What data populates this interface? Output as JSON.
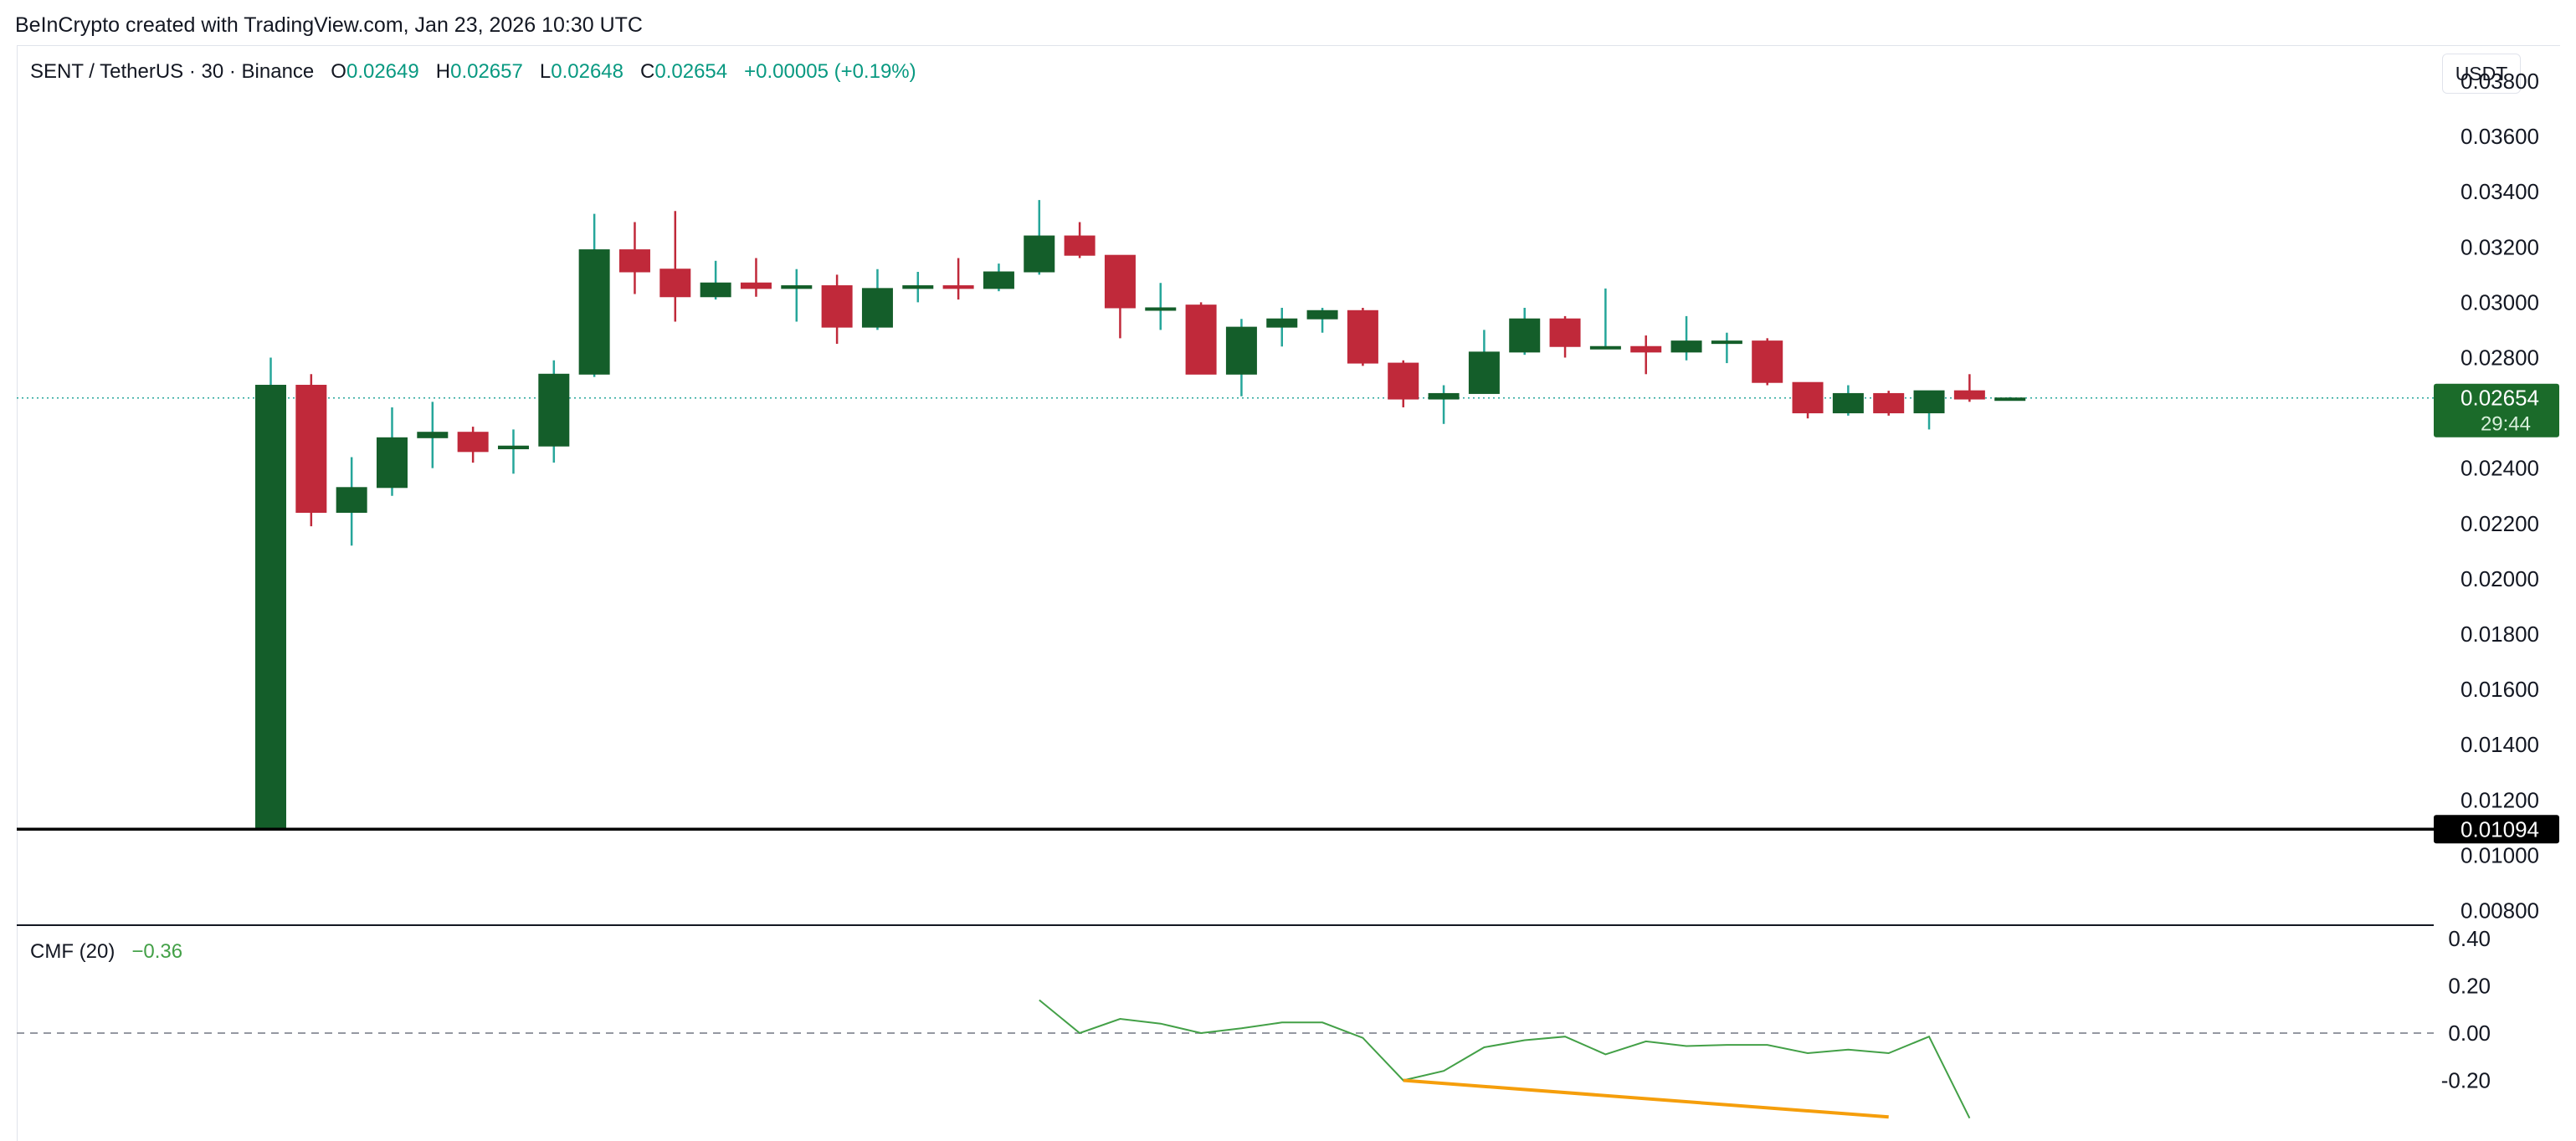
{
  "watermark": "BeInCrypto created with TradingView.com, Jan 23, 2026 10:30 UTC",
  "header": {
    "symbol": "SENT / TetherUS · 30 · Binance",
    "o_label": "O",
    "o_value": "0.02649",
    "h_label": "H",
    "h_value": "0.02657",
    "l_label": "L",
    "l_value": "0.02648",
    "c_label": "C",
    "c_value": "0.02654",
    "change": "+0.00005 (+0.19%)",
    "currency": "USDT"
  },
  "colors": {
    "up": "#145e2a",
    "down": "#c0293a",
    "wick_up": "#26a69a",
    "wick_down": "#c0293a",
    "cmf_line": "#43a047",
    "trendline": "#f59e0b",
    "level_line": "#000000",
    "price_badge": "#1b6b2a"
  },
  "chart_data": [
    {
      "type": "candlestick",
      "title": "SENT / TetherUS · 30 · Binance",
      "ylim": [
        0.0075,
        0.0393
      ],
      "y_ticks": [
        "0.03800",
        "0.03600",
        "0.03400",
        "0.03200",
        "0.03000",
        "0.02800",
        "0.02400",
        "0.02200",
        "0.02000",
        "0.01800",
        "0.01600",
        "0.01400",
        "0.01200",
        "0.01000",
        "0.00800"
      ],
      "x_slots": 54,
      "candles": [
        {
          "i": 0,
          "o": 0.01094,
          "h": 0.028,
          "l": 0.01094,
          "c": 0.027
        },
        {
          "i": 1,
          "o": 0.027,
          "h": 0.0274,
          "l": 0.0219,
          "c": 0.0224
        },
        {
          "i": 2,
          "o": 0.0224,
          "h": 0.0244,
          "l": 0.0212,
          "c": 0.0233
        },
        {
          "i": 3,
          "o": 0.0233,
          "h": 0.0262,
          "l": 0.023,
          "c": 0.0251
        },
        {
          "i": 4,
          "o": 0.0251,
          "h": 0.0264,
          "l": 0.024,
          "c": 0.0253
        },
        {
          "i": 5,
          "o": 0.0253,
          "h": 0.0255,
          "l": 0.0242,
          "c": 0.0246
        },
        {
          "i": 6,
          "o": 0.0247,
          "h": 0.0254,
          "l": 0.0238,
          "c": 0.0248
        },
        {
          "i": 7,
          "o": 0.0248,
          "h": 0.0279,
          "l": 0.0242,
          "c": 0.0274
        },
        {
          "i": 8,
          "o": 0.0274,
          "h": 0.0332,
          "l": 0.0273,
          "c": 0.0319
        },
        {
          "i": 9,
          "o": 0.0319,
          "h": 0.0329,
          "l": 0.0303,
          "c": 0.0311
        },
        {
          "i": 10,
          "o": 0.0312,
          "h": 0.0333,
          "l": 0.0293,
          "c": 0.0302
        },
        {
          "i": 11,
          "o": 0.0302,
          "h": 0.0315,
          "l": 0.0301,
          "c": 0.0307
        },
        {
          "i": 12,
          "o": 0.0307,
          "h": 0.0316,
          "l": 0.0302,
          "c": 0.0305
        },
        {
          "i": 13,
          "o": 0.0305,
          "h": 0.0312,
          "l": 0.0293,
          "c": 0.0306
        },
        {
          "i": 14,
          "o": 0.0306,
          "h": 0.031,
          "l": 0.0285,
          "c": 0.0291
        },
        {
          "i": 15,
          "o": 0.0291,
          "h": 0.0312,
          "l": 0.029,
          "c": 0.0305
        },
        {
          "i": 16,
          "o": 0.0305,
          "h": 0.0311,
          "l": 0.03,
          "c": 0.0306
        },
        {
          "i": 17,
          "o": 0.0306,
          "h": 0.0316,
          "l": 0.0301,
          "c": 0.0305
        },
        {
          "i": 18,
          "o": 0.0305,
          "h": 0.0314,
          "l": 0.0304,
          "c": 0.0311
        },
        {
          "i": 19,
          "o": 0.0311,
          "h": 0.0337,
          "l": 0.031,
          "c": 0.0324
        },
        {
          "i": 20,
          "o": 0.0324,
          "h": 0.0329,
          "l": 0.0316,
          "c": 0.0317
        },
        {
          "i": 21,
          "o": 0.0317,
          "h": 0.0317,
          "l": 0.0287,
          "c": 0.0298
        },
        {
          "i": 22,
          "o": 0.0298,
          "h": 0.0307,
          "l": 0.029,
          "c": 0.0298
        },
        {
          "i": 23,
          "o": 0.0299,
          "h": 0.03,
          "l": 0.0274,
          "c": 0.0274
        },
        {
          "i": 24,
          "o": 0.0274,
          "h": 0.0294,
          "l": 0.0266,
          "c": 0.0291
        },
        {
          "i": 25,
          "o": 0.0291,
          "h": 0.0298,
          "l": 0.0284,
          "c": 0.0294
        },
        {
          "i": 26,
          "o": 0.0294,
          "h": 0.0298,
          "l": 0.0289,
          "c": 0.0297
        },
        {
          "i": 27,
          "o": 0.0297,
          "h": 0.0298,
          "l": 0.0277,
          "c": 0.0278
        },
        {
          "i": 28,
          "o": 0.0278,
          "h": 0.0279,
          "l": 0.0262,
          "c": 0.0265
        },
        {
          "i": 29,
          "o": 0.0265,
          "h": 0.027,
          "l": 0.0256,
          "c": 0.0267
        },
        {
          "i": 30,
          "o": 0.0267,
          "h": 0.029,
          "l": 0.0267,
          "c": 0.0282
        },
        {
          "i": 31,
          "o": 0.0282,
          "h": 0.0298,
          "l": 0.0281,
          "c": 0.0294
        },
        {
          "i": 32,
          "o": 0.0294,
          "h": 0.0295,
          "l": 0.028,
          "c": 0.0284
        },
        {
          "i": 33,
          "o": 0.0284,
          "h": 0.0305,
          "l": 0.0283,
          "c": 0.0284
        },
        {
          "i": 34,
          "o": 0.0284,
          "h": 0.0288,
          "l": 0.0274,
          "c": 0.0282
        },
        {
          "i": 35,
          "o": 0.0282,
          "h": 0.0295,
          "l": 0.0279,
          "c": 0.0286
        },
        {
          "i": 36,
          "o": 0.0286,
          "h": 0.0289,
          "l": 0.0278,
          "c": 0.0286
        },
        {
          "i": 37,
          "o": 0.0286,
          "h": 0.0287,
          "l": 0.027,
          "c": 0.0271
        },
        {
          "i": 38,
          "o": 0.0271,
          "h": 0.0271,
          "l": 0.0258,
          "c": 0.026
        },
        {
          "i": 39,
          "o": 0.026,
          "h": 0.027,
          "l": 0.0259,
          "c": 0.0267
        },
        {
          "i": 40,
          "o": 0.0267,
          "h": 0.0268,
          "l": 0.0259,
          "c": 0.026
        },
        {
          "i": 41,
          "o": 0.026,
          "h": 0.0268,
          "l": 0.0254,
          "c": 0.0268
        },
        {
          "i": 42,
          "o": 0.0268,
          "h": 0.0274,
          "l": 0.0264,
          "c": 0.0265
        },
        {
          "i": 43,
          "o": 0.02649,
          "h": 0.02657,
          "l": 0.02648,
          "c": 0.02654
        }
      ],
      "last_price_label": "0.02654",
      "countdown_label": "29:44",
      "last_price": 0.02654,
      "level_price": 0.01094,
      "level_label": "0.01094"
    },
    {
      "type": "line",
      "title": "CMF (20)",
      "current_value": "−0.36",
      "ylim": [
        -0.36,
        0.44
      ],
      "y_ticks": [
        "0.40",
        "0.20",
        "0.00",
        "-0.20"
      ],
      "zero_line": 0.0,
      "series": [
        {
          "name": "CMF (20)",
          "points": [
            [
              19,
              0.14
            ],
            [
              20,
              0.0
            ],
            [
              21,
              0.06
            ],
            [
              22,
              0.04
            ],
            [
              23,
              0.0
            ],
            [
              24,
              0.02
            ],
            [
              25,
              0.045
            ],
            [
              26,
              0.045
            ],
            [
              27,
              -0.02
            ],
            [
              28,
              -0.2
            ],
            [
              29,
              -0.16
            ],
            [
              30,
              -0.06
            ],
            [
              31,
              -0.03
            ],
            [
              32,
              -0.015
            ],
            [
              33,
              -0.09
            ],
            [
              34,
              -0.035
            ],
            [
              35,
              -0.055
            ],
            [
              36,
              -0.05
            ],
            [
              37,
              -0.05
            ],
            [
              38,
              -0.085
            ],
            [
              39,
              -0.07
            ],
            [
              40,
              -0.085
            ],
            [
              41,
              -0.015
            ],
            [
              42,
              -0.36
            ]
          ]
        }
      ],
      "trendline": [
        [
          28,
          -0.2
        ],
        [
          40,
          -0.355
        ]
      ]
    }
  ]
}
